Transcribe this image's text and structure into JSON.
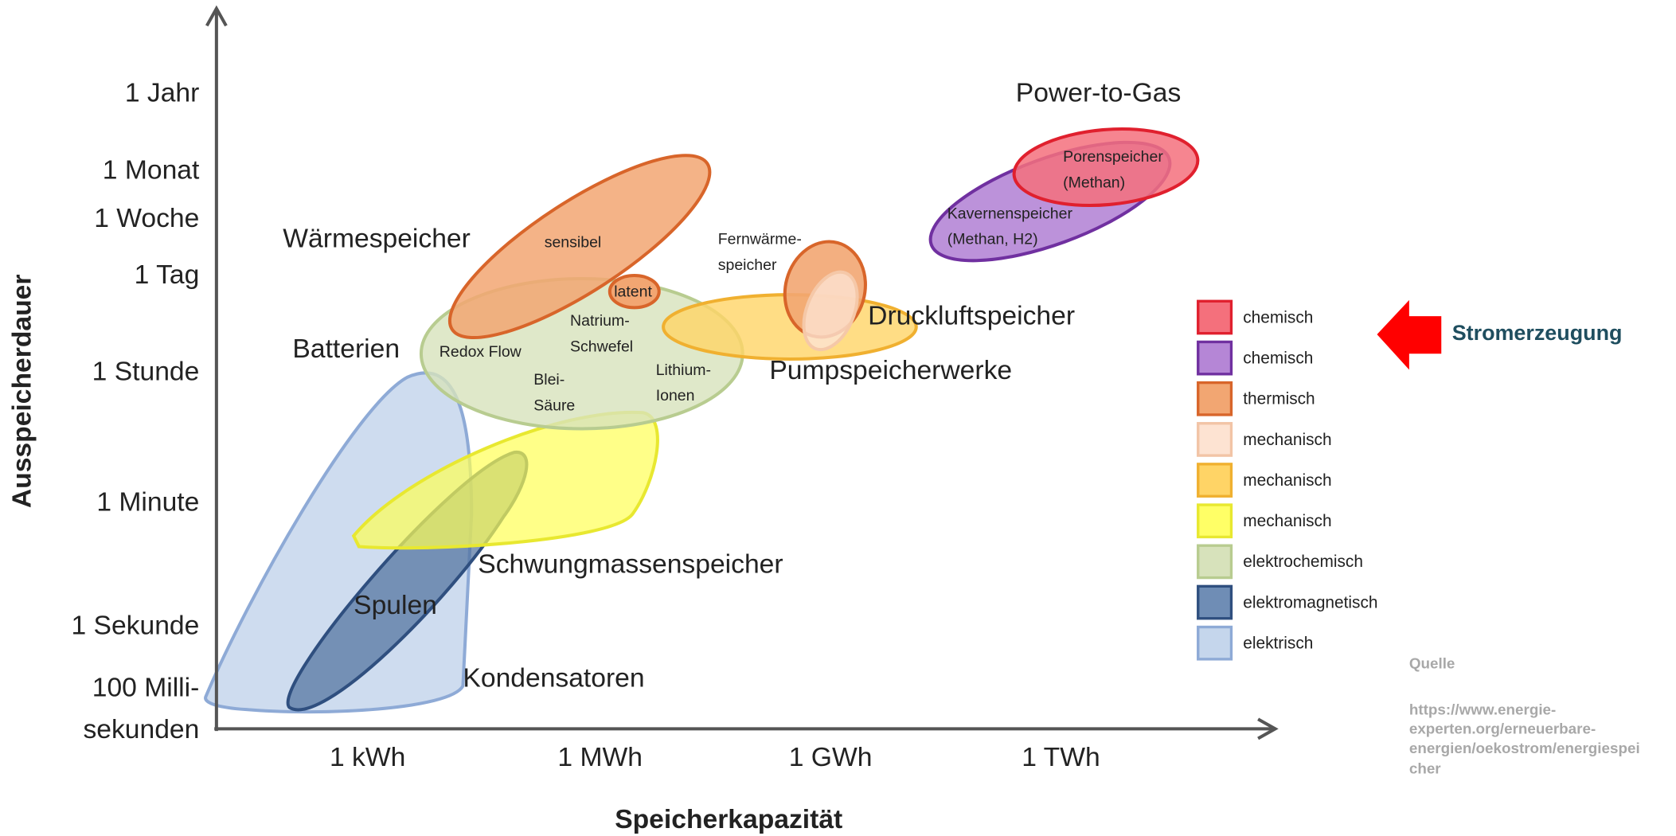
{
  "y_axis": {
    "label": "Ausspeicherdauer",
    "ticks": [
      [
        "1 Jahr"
      ],
      [
        "1 Monat"
      ],
      [
        "1 Woche"
      ],
      [
        "1 Tag"
      ],
      [
        "1 Stunde"
      ],
      [
        "1 Minute"
      ],
      [
        "1 Sekunde"
      ],
      [
        "100 Milli-",
        "sekunden"
      ]
    ]
  },
  "x_axis": {
    "label": "Speicherkapazität",
    "ticks": [
      "1 kWh",
      "1 MWh",
      "1 GWh",
      "1 TWh"
    ]
  },
  "regions": [
    {
      "lines": [
        "Power-to-Gas"
      ]
    },
    {
      "lines": [
        "Porenspeicher",
        "(Methan)"
      ]
    },
    {
      "lines": [
        "Kavernenspeicher",
        "(Methan, H2)"
      ]
    },
    {
      "lines": [
        "Fernwärme-",
        "speicher"
      ]
    },
    {
      "lines": [
        "Wärmespeicher"
      ]
    },
    {
      "lines": [
        "sensibel"
      ]
    },
    {
      "lines": [
        "latent"
      ]
    },
    {
      "lines": [
        "Druckluftspeicher"
      ]
    },
    {
      "lines": [
        "Pumpspeicherwerke"
      ]
    },
    {
      "lines": [
        "Batterien"
      ]
    },
    {
      "lines": [
        "Redox Flow"
      ]
    },
    {
      "lines": [
        "Natrium-",
        "Schwefel"
      ]
    },
    {
      "lines": [
        "Blei-",
        "Säure"
      ]
    },
    {
      "lines": [
        "Lithium-",
        "Ionen"
      ]
    },
    {
      "lines": [
        "Schwungmassenspeicher"
      ]
    },
    {
      "lines": [
        "Spulen"
      ]
    },
    {
      "lines": [
        "Kondensatoren"
      ]
    }
  ],
  "legend": [
    {
      "label": "chemisch",
      "color": "#f4707c",
      "stroke": "#e0202e"
    },
    {
      "label": "chemisch",
      "color": "#b586d6",
      "stroke": "#7030a0"
    },
    {
      "label": "thermisch",
      "color": "#f2a672",
      "stroke": "#d8652a"
    },
    {
      "label": "mechanisch",
      "color": "#fde3d2",
      "stroke": "#f2c4a6"
    },
    {
      "label": "mechanisch",
      "color": "#ffd466",
      "stroke": "#f0b030"
    },
    {
      "label": "mechanisch",
      "color": "#ffff66",
      "stroke": "#e8e830"
    },
    {
      "label": "elektrochemisch",
      "color": "#d7e2bb",
      "stroke": "#b8cc90"
    },
    {
      "label": "elektromagnetisch",
      "color": "#6f8db5",
      "stroke": "#2f4f7f"
    },
    {
      "label": "elektrisch",
      "color": "#c5d6ec",
      "stroke": "#8eaad6"
    }
  ],
  "annotation": "Stromerzeugung",
  "source": {
    "title": "Quelle",
    "lines": [
      "https://www.energie-",
      "experten.org/erneuerbare-",
      "energien/oekostrom/energiespei",
      "cher"
    ]
  }
}
